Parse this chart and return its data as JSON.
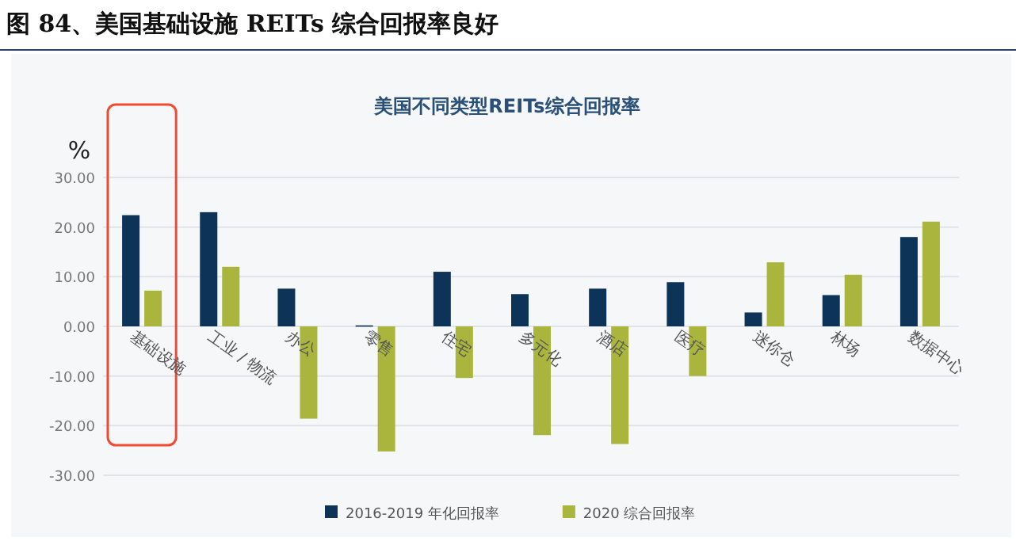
{
  "chart_data": {
    "type": "bar",
    "title": "图 84、美国基础设施 REITs 综合回报率良好",
    "subtitle": "美国不同类型REITs综合回报率",
    "ylabel": "%",
    "categories": [
      "基础设施",
      "工业 / 物流",
      "办公",
      "零售",
      "住宅",
      "多元化",
      "酒店",
      "医疗",
      "迷你仓",
      "林场",
      "数据中心"
    ],
    "series": [
      {
        "name": "2016-2019 年化回报率",
        "color": "#0d3358",
        "values": [
          22.4,
          23.0,
          7.6,
          0.2,
          11.0,
          6.5,
          7.6,
          8.9,
          2.8,
          6.3,
          18.0
        ]
      },
      {
        "name": "2020 综合回报率",
        "color": "#a9b53c",
        "values": [
          7.2,
          12.0,
          -18.6,
          -25.2,
          -10.4,
          -21.9,
          -23.7,
          -10.0,
          12.9,
          10.4,
          21.1
        ]
      }
    ],
    "ylim": [
      -30,
      30
    ],
    "yticks": [
      {
        "value": -30,
        "label": "-30.00"
      },
      {
        "value": -20,
        "label": "-20.00"
      },
      {
        "value": -10,
        "label": "-10.00"
      },
      {
        "value": 0,
        "label": "0.00"
      },
      {
        "value": 10,
        "label": "10.00"
      },
      {
        "value": 20,
        "label": "20.00"
      },
      {
        "value": 30,
        "label": "30.00"
      }
    ],
    "grid": "y",
    "legend": "bottom"
  }
}
